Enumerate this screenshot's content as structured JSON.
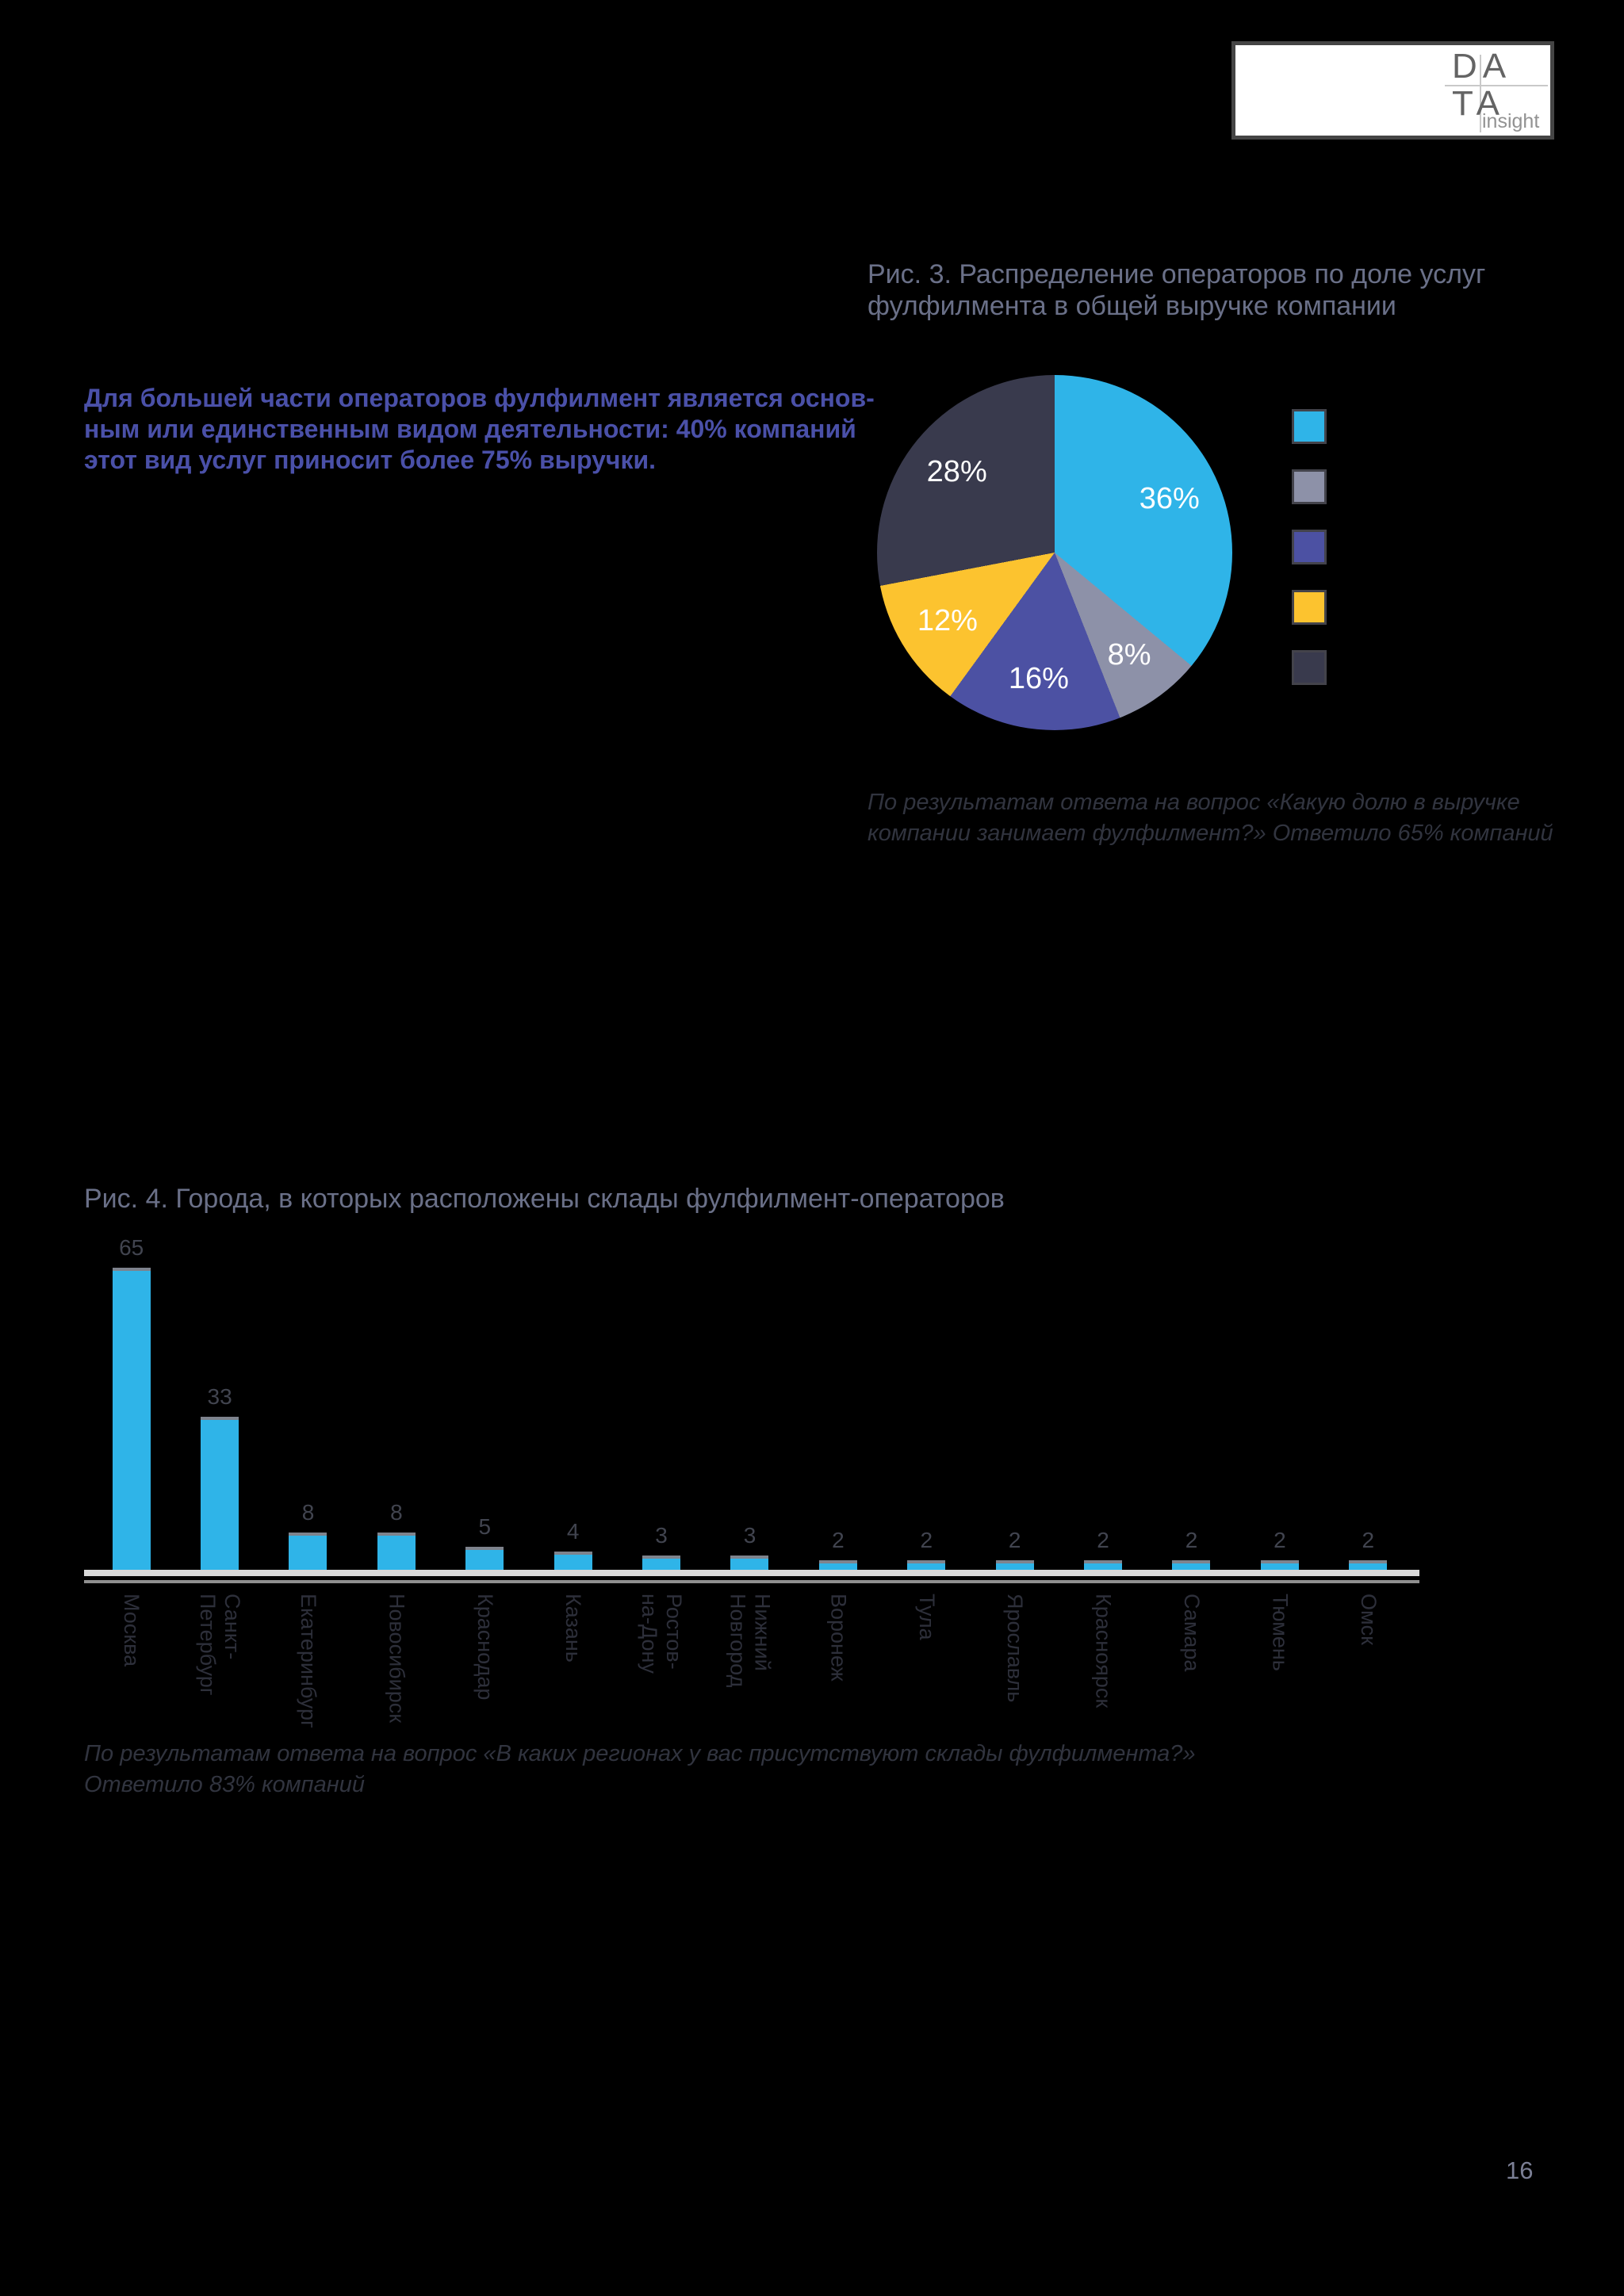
{
  "page": {
    "background": "#000000",
    "page_number": "16"
  },
  "logo": {
    "line1": "DA",
    "line2": "TA",
    "caption": "insight"
  },
  "fig3": {
    "title": "Рис. 3. Распределение операторов по доле услуг\nфулфилмента в общей выручке компании",
    "highlight_text": "Для большей части операторов фулфилмент является основ-\nным или единственным видом деятельности: 40% компаний\nэтот вид услуг приносит более 75% выручки.",
    "caption": "По результатам ответа на вопрос «Какую долю в выручке\nкомпании занимает фулфилмент?» Ответило 65% компаний"
  },
  "fig4": {
    "title": "Рис. 4. Города, в которых расположены склады фулфилмент-операторов",
    "caption": "По результатам ответа на вопрос «В каких регионах у вас присутствуют склады фулфилмента?»\nОтветило 83% компаний"
  },
  "colors": {
    "accent_blue": "#2fb4e8",
    "slate_gray": "#8d91a8",
    "indigo": "#4c51a3",
    "yellow": "#fcc32f",
    "dark_navy": "#393a4d"
  },
  "chart_data": [
    {
      "type": "pie",
      "title": "Рис. 3. Распределение операторов по доле услуг фулфилмента в общей выручке компании",
      "values": [
        36,
        8,
        16,
        12,
        28
      ],
      "labels": [
        "36%",
        "8%",
        "16%",
        "12%",
        "28%"
      ],
      "colors": [
        "#2fb4e8",
        "#8d91a8",
        "#4c51a3",
        "#fcc32f",
        "#393a4d"
      ],
      "start_angle_deg": 0,
      "direction": "clockwise",
      "legend_position": "right",
      "legend_swatch_colors": [
        "#2fb4e8",
        "#8d91a8",
        "#4c51a3",
        "#fcc32f",
        "#393a4d"
      ]
    },
    {
      "type": "bar",
      "title": "Рис. 4. Города, в которых расположены склады фулфилмент-операторов",
      "categories": [
        "Москва",
        "Санкт-\nПетербург",
        "Екатеринбург",
        "Новосибирск",
        "Краснодар",
        "Казань",
        "Ростов-\nна-Дону",
        "Нижний\nНовгород",
        "Воронеж",
        "Тула",
        "Ярославль",
        "Красноярск",
        "Самара",
        "Тюмень",
        "Омск"
      ],
      "values": [
        65,
        33,
        8,
        8,
        5,
        4,
        3,
        3,
        2,
        2,
        2,
        2,
        2,
        2,
        2
      ],
      "bar_color": "#2fb4e8",
      "ylim": [
        0,
        65
      ],
      "grid": false,
      "value_labels": "above bars"
    }
  ]
}
